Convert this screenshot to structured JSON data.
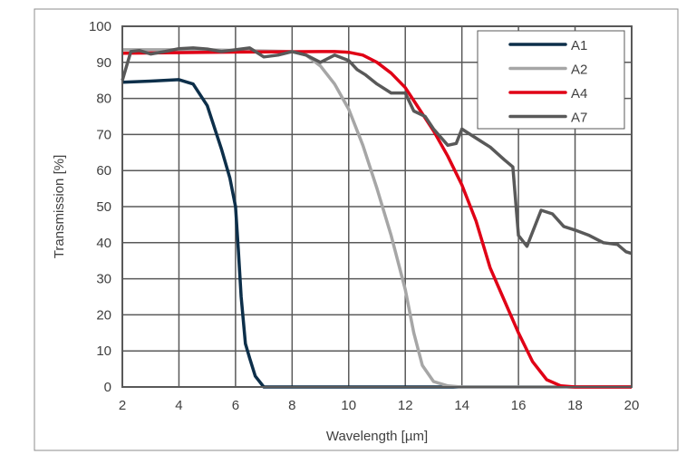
{
  "chart_data": {
    "type": "line",
    "title": "",
    "xlabel": "Wavelength [µm]",
    "ylabel": "Transmission [%]",
    "xlim": [
      2,
      20
    ],
    "ylim": [
      0,
      100
    ],
    "xticks": [
      2,
      4,
      6,
      8,
      10,
      12,
      14,
      16,
      18,
      20
    ],
    "yticks": [
      0,
      10,
      20,
      30,
      40,
      50,
      60,
      70,
      80,
      90,
      100
    ],
    "grid": true,
    "legend_position": "top-right",
    "series": [
      {
        "name": "A1",
        "color": "#0d2f4a",
        "x": [
          2,
          3,
          4,
          4.5,
          5,
          5.5,
          5.8,
          6,
          6.1,
          6.2,
          6.35,
          6.5,
          6.7,
          7,
          20
        ],
        "y": [
          84.5,
          84.8,
          85.2,
          84,
          78,
          66,
          58,
          50,
          38,
          25,
          12,
          8,
          3,
          0,
          0
        ]
      },
      {
        "name": "A2",
        "color": "#a6a6a6",
        "x": [
          2,
          5,
          8,
          8.5,
          9,
          9.5,
          10,
          10.5,
          11,
          11.5,
          12,
          12.3,
          12.6,
          13,
          13.5,
          14,
          20
        ],
        "y": [
          93.5,
          93.5,
          93,
          92,
          89,
          84,
          77,
          67,
          55,
          42,
          27,
          15,
          6,
          1.5,
          0.3,
          0,
          0
        ]
      },
      {
        "name": "A4",
        "color": "#e00016",
        "x": [
          2,
          5,
          9,
          9.5,
          10,
          10.5,
          11,
          11.5,
          12,
          12.5,
          13,
          13.5,
          14,
          14.5,
          15,
          15.5,
          16,
          16.5,
          17,
          17.5,
          18,
          20
        ],
        "y": [
          92.5,
          92.8,
          93,
          93,
          92.8,
          92,
          90,
          87,
          83,
          77,
          71,
          64,
          56,
          46,
          33,
          24,
          15,
          7,
          2,
          0.3,
          0,
          0
        ]
      },
      {
        "name": "A7",
        "color": "#595959",
        "x": [
          2,
          2.15,
          2.3,
          2.6,
          3,
          3.5,
          4,
          4.5,
          5,
          5.5,
          6,
          6.5,
          7,
          7.5,
          8,
          8.5,
          9,
          9.5,
          10,
          10.3,
          10.6,
          11,
          11.5,
          12,
          12.3,
          12.7,
          13,
          13.5,
          13.8,
          14,
          14.3,
          14.7,
          15,
          15.5,
          15.8,
          16,
          16.3,
          16.5,
          16.8,
          17.2,
          17.6,
          18,
          18.5,
          19,
          19.5,
          19.8,
          20
        ],
        "y": [
          85,
          89,
          93,
          93.3,
          92.3,
          93,
          93.8,
          94,
          93.7,
          93,
          93.5,
          94,
          91.5,
          92,
          93,
          92,
          90,
          92,
          90.5,
          88,
          86.5,
          84,
          81.5,
          81.5,
          76.5,
          75,
          71.5,
          67,
          67.5,
          71.5,
          70,
          68,
          66.5,
          63,
          61,
          42,
          39,
          43,
          49,
          48,
          44.5,
          43.5,
          42,
          40,
          39.5,
          37.5,
          37
        ]
      }
    ]
  }
}
